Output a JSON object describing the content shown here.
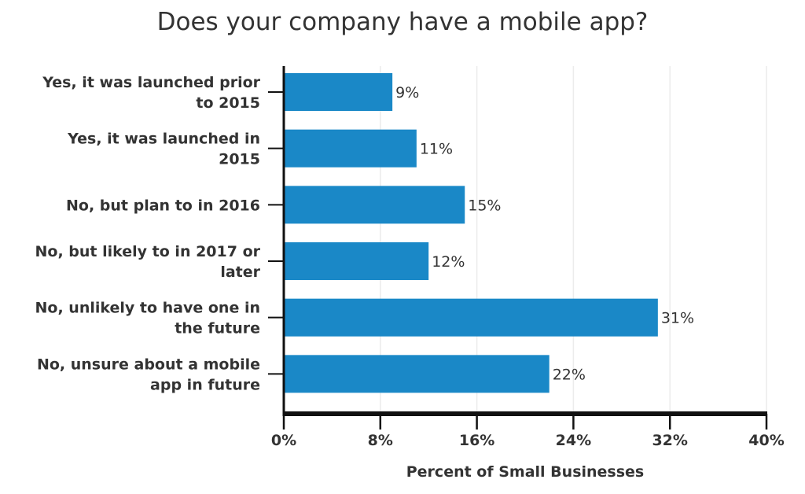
{
  "chart_data": {
    "type": "bar",
    "orientation": "horizontal",
    "title": "Does your company have a mobile app?",
    "xlabel": "Percent of Small Businesses",
    "ylabel": "",
    "categories": [
      [
        "Yes, it was launched prior",
        "to 2015"
      ],
      [
        "Yes, it was launched in",
        "2015"
      ],
      [
        "No, but plan to in 2016"
      ],
      [
        "No, but likely to in 2017 or",
        "later"
      ],
      [
        "No, unlikely to have one in",
        "the future"
      ],
      [
        "No, unsure about a mobile",
        "app in future"
      ]
    ],
    "values": [
      9,
      11,
      15,
      12,
      31,
      22
    ],
    "data_labels": [
      "9%",
      "11%",
      "15%",
      "12%",
      "31%",
      "22%"
    ],
    "xlim": [
      0,
      40
    ],
    "xticks": [
      0,
      8,
      16,
      24,
      32,
      40
    ],
    "xtick_labels": [
      "0%",
      "8%",
      "16%",
      "24%",
      "32%",
      "40%"
    ],
    "grid": "vertical",
    "legend": "none",
    "bar_color": "#1a88c7"
  }
}
